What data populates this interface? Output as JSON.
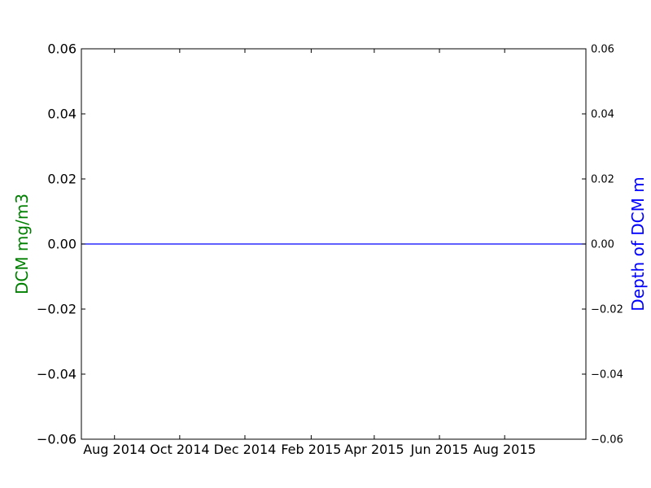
{
  "chart_data": {
    "type": "line",
    "x_type": "date",
    "xlim": [
      "2014-07-01",
      "2015-10-16"
    ],
    "x_ticks": [
      "2014-08-01",
      "2014-10-01",
      "2014-12-01",
      "2015-02-01",
      "2015-04-01",
      "2015-06-01",
      "2015-08-01"
    ],
    "x_tick_labels": [
      "Aug 2014",
      "Oct 2014",
      "Dec 2014",
      "Feb 2015",
      "Apr 2015",
      "Jun 2015",
      "Aug 2015"
    ],
    "ylabel": "DCM mg/m3",
    "ylabel_color": "#008000",
    "ylim": [
      -0.06,
      0.06
    ],
    "y_ticks": [
      0.06,
      0.04,
      0.02,
      0.0,
      -0.02,
      -0.04,
      -0.06
    ],
    "y_tick_labels": [
      "0.06",
      "0.04",
      "0.02",
      "0.00",
      "−0.02",
      "−0.04",
      "−0.06"
    ],
    "y2label": "Depth of DCM m",
    "y2label_color": "#0000ff",
    "y2lim": [
      -0.06,
      0.06
    ],
    "y2_ticks": [
      0.06,
      0.04,
      0.02,
      0.0,
      -0.02,
      -0.04,
      -0.06
    ],
    "y2_tick_labels": [
      "0.06",
      "0.04",
      "0.02",
      "0.00",
      "−0.02",
      "−0.04",
      "−0.06"
    ],
    "series": [
      {
        "axis": "y2",
        "color": "#0000ff",
        "x": [
          "2014-07-01",
          "2015-10-16"
        ],
        "y": [
          0.0,
          0.0
        ]
      }
    ],
    "grid": false
  }
}
